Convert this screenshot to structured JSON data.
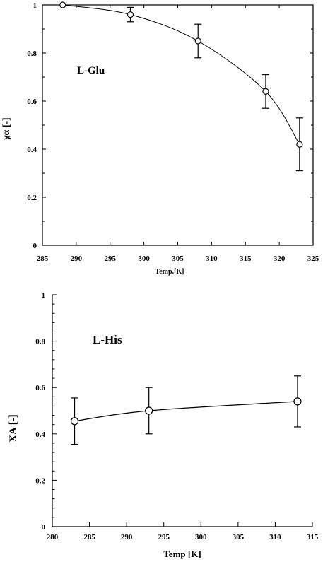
{
  "chart_data": [
    {
      "type": "scatter",
      "annotation": "L-Glu",
      "xlabel": "Temp.[K]",
      "ylabel": "χα [-]",
      "xlim": [
        285,
        325
      ],
      "ylim": [
        0,
        1
      ],
      "xticks": [
        "285",
        "290",
        "295",
        "300",
        "305",
        "310",
        "315",
        "320",
        "325"
      ],
      "yticks": [
        "0",
        "0.2",
        "0.4",
        "0.6",
        "0.8",
        "1"
      ],
      "grid": false,
      "series": [
        {
          "x": [
            288,
            298,
            308,
            318,
            323
          ],
          "y": [
            1.0,
            0.96,
            0.85,
            0.64,
            0.42
          ],
          "error": [
            0.0,
            0.03,
            0.07,
            0.07,
            0.11
          ],
          "marker": "open-circle",
          "fit_line": true
        }
      ]
    },
    {
      "type": "scatter",
      "annotation": "L-His",
      "xlabel": "Temp [K]",
      "ylabel": "XA [-]",
      "xlim": [
        280,
        315
      ],
      "ylim": [
        0,
        1
      ],
      "xticks": [
        "280",
        "285",
        "290",
        "295",
        "300",
        "305",
        "310",
        "315"
      ],
      "yticks": [
        "0",
        "0.2",
        "0.4",
        "0.6",
        "0.8",
        "1"
      ],
      "grid": false,
      "series": [
        {
          "x": [
            283,
            293,
            313
          ],
          "y": [
            0.455,
            0.5,
            0.54
          ],
          "error": [
            0.1,
            0.1,
            0.11
          ],
          "marker": "open-circle",
          "fit_line": true
        }
      ]
    }
  ]
}
